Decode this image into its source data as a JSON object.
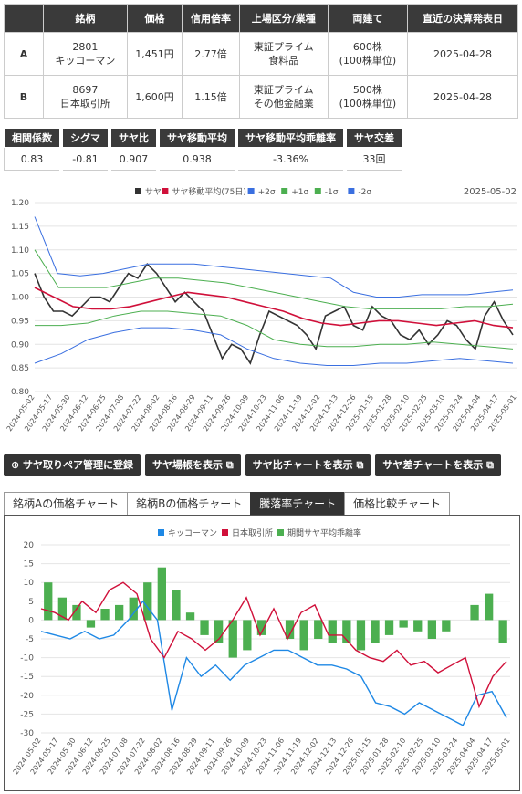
{
  "pair_table": {
    "headers": [
      "",
      "銘柄",
      "価格",
      "信用倍率",
      "上場区分/業種",
      "両建て",
      "直近の決算発表日"
    ],
    "rows": [
      {
        "label": "A",
        "code": "2801",
        "name": "キッコーマン",
        "price": "1,451円",
        "ratio": "2.77倍",
        "market": "東証プライム",
        "sector": "食料品",
        "hedge": "600株",
        "unit": "(100株単位)",
        "date": "2025-04-28"
      },
      {
        "label": "B",
        "code": "8697",
        "name": "日本取引所",
        "price": "1,600円",
        "ratio": "1.15倍",
        "market": "東証プライム",
        "sector": "その他金融業",
        "hedge": "500株",
        "unit": "(100株単位)",
        "date": "2025-04-28"
      }
    ]
  },
  "stats": [
    {
      "label": "相関係数",
      "value": "0.83"
    },
    {
      "label": "シグマ",
      "value": "-0.81"
    },
    {
      "label": "サヤ比",
      "value": "0.907"
    },
    {
      "label": "サヤ移動平均",
      "value": "0.938"
    },
    {
      "label": "サヤ移動平均乖離率",
      "value": "-3.36%"
    },
    {
      "label": "サヤ交差",
      "value": "33回"
    }
  ],
  "buttons": [
    "サヤ取りペア管理に登録",
    "サヤ場帳を表示",
    "サヤ比チャートを表示",
    "サヤ差チャートを表示"
  ],
  "tabs": [
    "銘柄Aの価格チャート",
    "銘柄Bの価格チャート",
    "騰落率チャート",
    "価格比較チャート"
  ],
  "active_tab": 2,
  "chart_data": [
    {
      "type": "line",
      "date_label": "2025-05-02",
      "legend": [
        {
          "name": "サヤ",
          "color": "#333333"
        },
        {
          "name": "サヤ移動平均(75日)",
          "color": "#d0103a"
        },
        {
          "name": "+2σ",
          "color": "#3a6fe0"
        },
        {
          "name": "+1σ",
          "color": "#4caf50"
        },
        {
          "name": "-1σ",
          "color": "#4caf50"
        },
        {
          "name": "-2σ",
          "color": "#3a6fe0"
        }
      ],
      "ylim": [
        0.8,
        1.2
      ],
      "yticks": [
        "1.20",
        "1.15",
        "1.10",
        "1.05",
        "1.00",
        "0.95",
        "0.90",
        "0.85",
        "0.80"
      ],
      "xticks": [
        "2024-05-02",
        "2024-05-17",
        "2024-05-30",
        "2024-06-12",
        "2024-06-25",
        "2024-07-08",
        "2024-07-22",
        "2024-08-02",
        "2024-08-16",
        "2024-08-29",
        "2024-09-11",
        "2024-09-26",
        "2024-10-09",
        "2024-10-23",
        "2024-11-06",
        "2024-11-19",
        "2024-12-02",
        "2024-12-13",
        "2024-12-26",
        "2025-01-15",
        "2025-01-28",
        "2025-02-10",
        "2025-02-25",
        "2025-03-10",
        "2025-03-24",
        "2025-04-04",
        "2025-04-17",
        "2025-05-01"
      ],
      "series": [
        {
          "name": "サヤ",
          "values": [
            1.05,
            1.0,
            0.97,
            0.97,
            0.96,
            0.98,
            1.0,
            1.0,
            0.99,
            1.02,
            1.05,
            1.04,
            1.07,
            1.05,
            1.02,
            0.99,
            1.01,
            0.99,
            0.97,
            0.92,
            0.87,
            0.9,
            0.89,
            0.86,
            0.92,
            0.97,
            0.96,
            0.95,
            0.94,
            0.92,
            0.89,
            0.96,
            0.97,
            0.98,
            0.94,
            0.93,
            0.98,
            0.96,
            0.95,
            0.92,
            0.91,
            0.93,
            0.9,
            0.92,
            0.95,
            0.94,
            0.91,
            0.89,
            0.96,
            0.99,
            0.95,
            0.92
          ]
        },
        {
          "name": "サヤ移動平均(75日)",
          "values": [
            1.02,
            1.0,
            0.98,
            0.975,
            0.975,
            0.98,
            0.99,
            1.0,
            1.01,
            1.005,
            1.0,
            0.99,
            0.98,
            0.97,
            0.955,
            0.945,
            0.94,
            0.945,
            0.95,
            0.95,
            0.945,
            0.94,
            0.945,
            0.95,
            0.94,
            0.935
          ]
        },
        {
          "name": "+2σ",
          "values": [
            1.17,
            1.05,
            1.045,
            1.05,
            1.06,
            1.07,
            1.07,
            1.07,
            1.065,
            1.06,
            1.055,
            1.05,
            1.045,
            1.04,
            1.01,
            1.0,
            1.0,
            1.005,
            1.005,
            1.005,
            1.01,
            1.015
          ]
        },
        {
          "name": "+1σ",
          "values": [
            1.1,
            1.02,
            1.02,
            1.02,
            1.03,
            1.04,
            1.04,
            1.035,
            1.03,
            1.02,
            1.01,
            1.0,
            0.99,
            0.98,
            0.975,
            0.975,
            0.975,
            0.975,
            0.98,
            0.98,
            0.985
          ]
        },
        {
          "name": "-1σ",
          "values": [
            0.94,
            0.94,
            0.945,
            0.96,
            0.97,
            0.97,
            0.965,
            0.96,
            0.94,
            0.91,
            0.9,
            0.895,
            0.895,
            0.9,
            0.9,
            0.905,
            0.9,
            0.895,
            0.89
          ]
        },
        {
          "name": "-2σ",
          "values": [
            0.86,
            0.88,
            0.91,
            0.925,
            0.935,
            0.935,
            0.93,
            0.92,
            0.89,
            0.87,
            0.86,
            0.855,
            0.855,
            0.86,
            0.86,
            0.865,
            0.87,
            0.865,
            0.86
          ]
        }
      ]
    },
    {
      "type": "line",
      "legend": [
        {
          "name": "キッコーマン",
          "color": "#1e88e5"
        },
        {
          "name": "日本取引所",
          "color": "#d0103a"
        },
        {
          "name": "期間サヤ平均乖離率",
          "color": "#4caf50"
        }
      ],
      "ylim": [
        -30,
        20
      ],
      "yticks": [
        "20",
        "15",
        "10",
        "5",
        "0",
        "-5",
        "-10",
        "-15",
        "-20",
        "-25",
        "-30"
      ],
      "series": [
        {
          "name": "キッコーマン",
          "values": [
            -3,
            -4,
            -5,
            -3,
            -5,
            -4,
            0,
            5,
            0,
            -24,
            -10,
            -15,
            -12,
            -16,
            -12,
            -10,
            -8,
            -8,
            -10,
            -12,
            -12,
            -13,
            -15,
            -22,
            -23,
            -25,
            -22,
            -24,
            -26,
            -28,
            -20,
            -19,
            -26
          ]
        },
        {
          "name": "日本取引所",
          "values": [
            3,
            2,
            0,
            5,
            2,
            8,
            10,
            7,
            -5,
            -10,
            -3,
            -5,
            -8,
            -5,
            0,
            6,
            -4,
            3,
            -5,
            2,
            4,
            -4,
            -4,
            -8,
            -10,
            -11,
            -8,
            -12,
            -11,
            -14,
            -12,
            -10,
            -23,
            -15,
            -11
          ]
        },
        {
          "name": "期間サヤ平均乖離率",
          "values": [
            10,
            6,
            4,
            -2,
            3,
            4,
            6,
            10,
            14,
            8,
            2,
            -4,
            -6,
            -10,
            -8,
            -4,
            0,
            -5,
            -8,
            -5,
            -6,
            -6,
            -8,
            -6,
            -4,
            -2,
            -3,
            -5,
            -3,
            0,
            4,
            7,
            -6
          ]
        }
      ]
    }
  ]
}
